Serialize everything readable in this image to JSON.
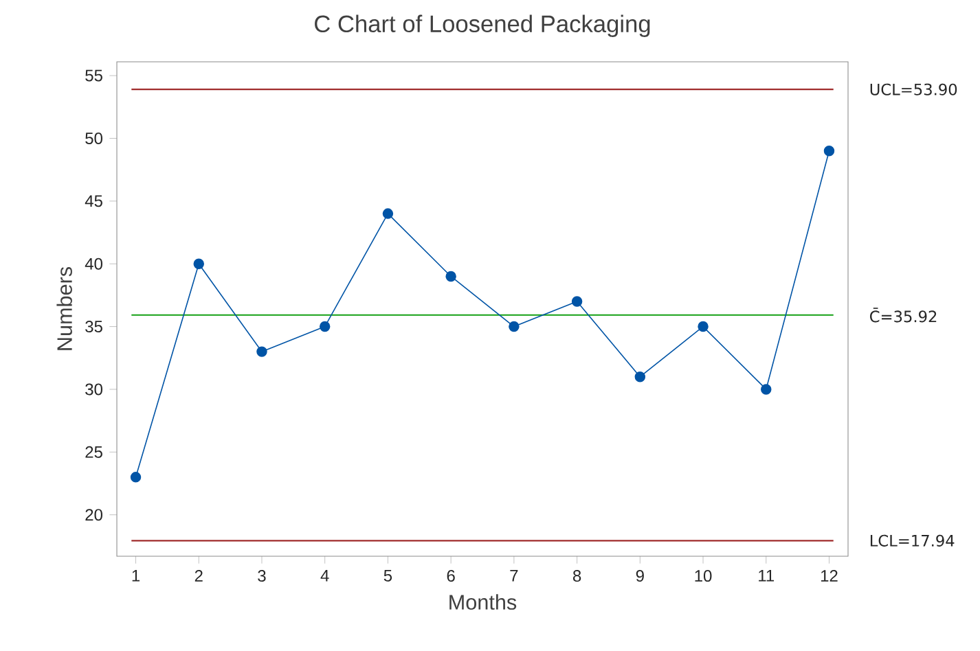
{
  "chart_data": {
    "type": "line",
    "title": "C Chart of Loosened Packaging",
    "xlabel": "Months",
    "ylabel": "Numbers",
    "x": [
      1,
      2,
      3,
      4,
      5,
      6,
      7,
      8,
      9,
      10,
      11,
      12
    ],
    "series": [
      {
        "color": "#0054a6",
        "values": [
          23,
          40,
          33,
          35,
          44,
          39,
          35,
          37,
          31,
          35,
          30,
          49
        ]
      }
    ],
    "marker": "circle",
    "line_style": "solid",
    "grid": false,
    "xlim": [
      0.7,
      12.3
    ],
    "xticks": [
      1,
      2,
      3,
      4,
      5,
      6,
      7,
      8,
      9,
      10,
      11,
      12
    ],
    "ylim": [
      16.7,
      56.1
    ],
    "yticks": [
      20,
      25,
      30,
      35,
      40,
      45,
      50,
      55
    ],
    "ref_lines": [
      {
        "axis": "y",
        "value": 53.9,
        "label": "UCL=53.90",
        "color": "#a02b2b"
      },
      {
        "axis": "y",
        "value": 35.92,
        "label": "C̄=35.92",
        "color": "#14a014"
      },
      {
        "axis": "y",
        "value": 17.94,
        "label": "LCL=17.94",
        "color": "#a02b2b"
      }
    ]
  }
}
